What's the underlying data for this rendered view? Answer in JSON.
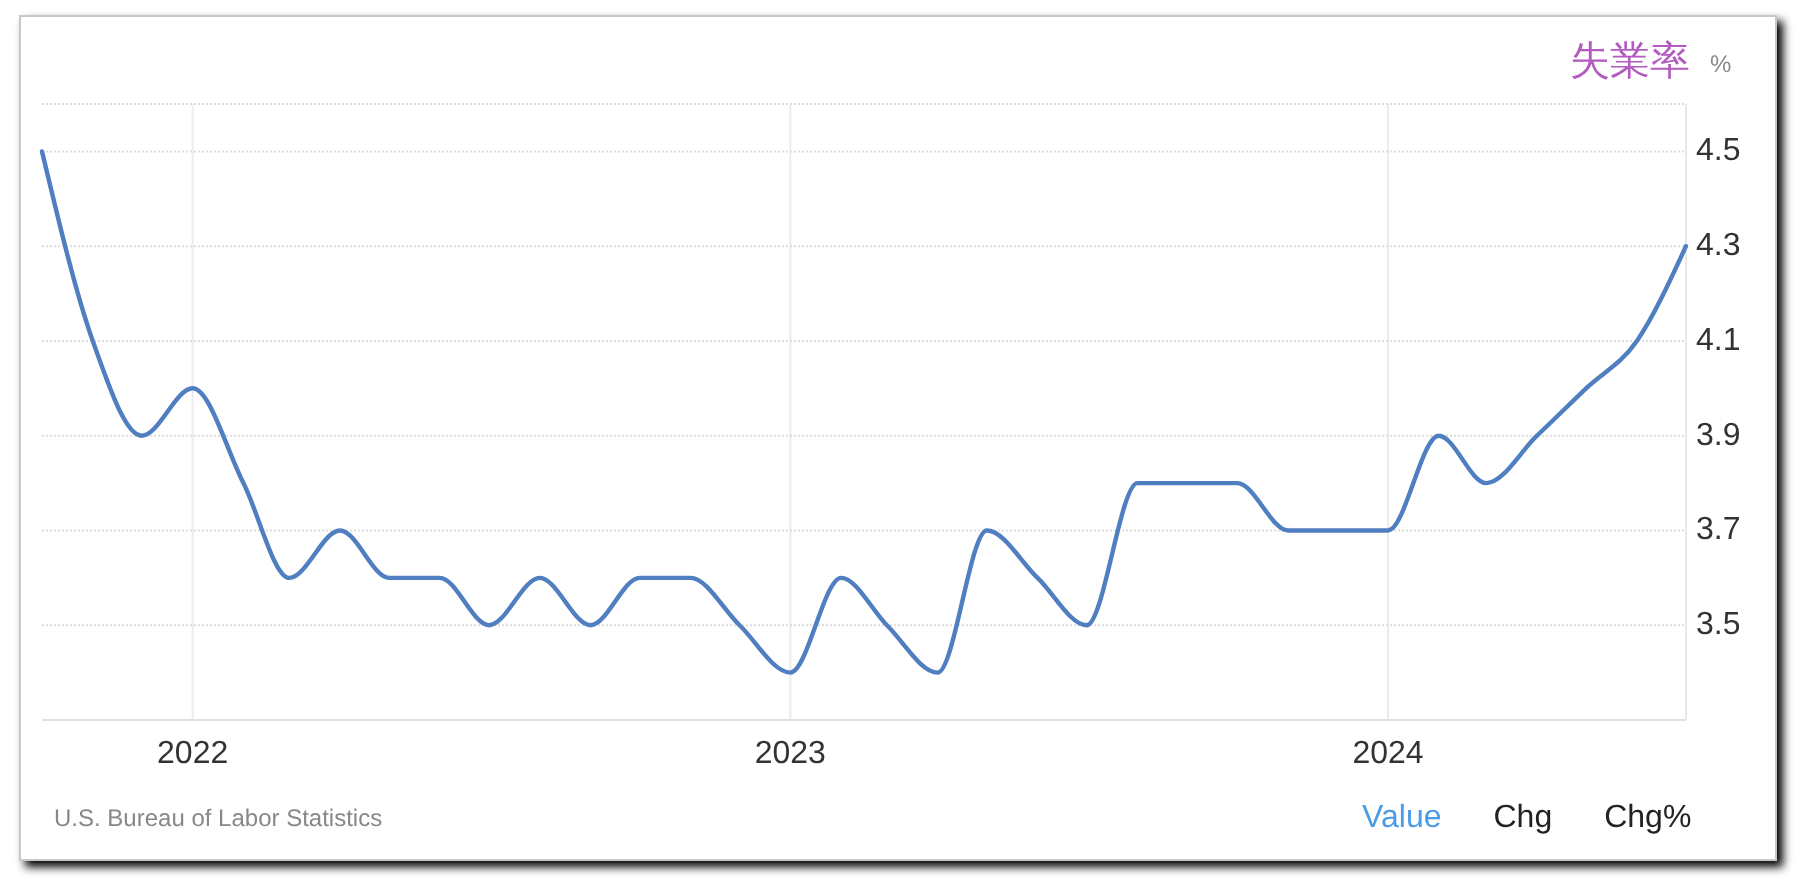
{
  "chart_data": {
    "type": "line",
    "title": "失業率",
    "ylabel": "%",
    "annotations": [
      "U.S. Bureau of Labor Statistics",
      "Value",
      "Chg",
      "Chg%"
    ],
    "x": [
      "2021-10",
      "2021-11",
      "2021-12",
      "2022-01",
      "2022-02",
      "2022-03",
      "2022-04",
      "2022-05",
      "2022-06",
      "2022-07",
      "2022-08",
      "2022-09",
      "2022-10",
      "2022-11",
      "2022-12",
      "2023-01",
      "2023-02",
      "2023-03",
      "2023-04",
      "2023-05",
      "2023-06",
      "2023-07",
      "2023-08",
      "2023-09",
      "2023-10",
      "2023-11",
      "2023-12",
      "2024-01",
      "2024-02",
      "2024-03",
      "2024-04",
      "2024-05",
      "2024-06",
      "2024-07"
    ],
    "series": [
      {
        "color": "#4f7fc0",
        "values": [
          4.5,
          4.1,
          3.9,
          4.0,
          3.8,
          3.6,
          3.7,
          3.6,
          3.6,
          3.5,
          3.6,
          3.5,
          3.6,
          3.6,
          3.5,
          3.4,
          3.6,
          3.5,
          3.4,
          3.7,
          3.6,
          3.5,
          3.8,
          3.8,
          3.8,
          3.7,
          3.7,
          3.7,
          3.9,
          3.8,
          3.9,
          4.0,
          4.1,
          4.3
        ]
      }
    ],
    "xlim": [
      "2021-10",
      "2024-07"
    ],
    "xticks": [
      "2022",
      "2023",
      "2024"
    ],
    "ylim": [
      3.3,
      4.6
    ],
    "yticks": [
      3.5,
      3.7,
      3.9,
      4.1,
      4.3,
      4.5
    ],
    "grid": true
  }
}
